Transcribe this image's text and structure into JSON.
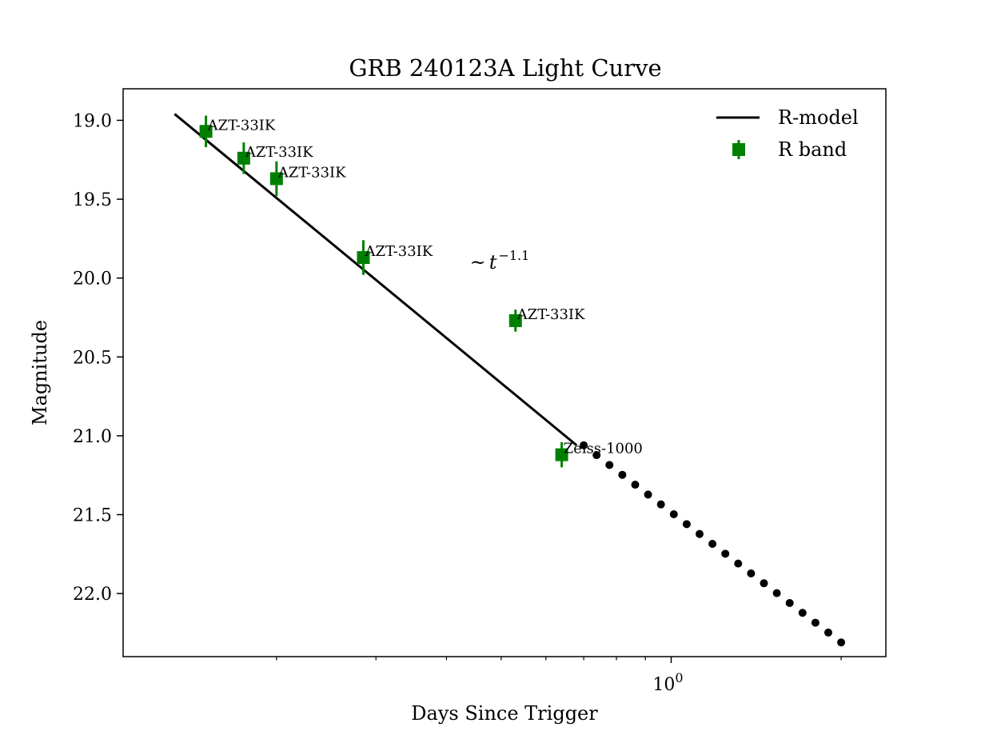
{
  "chart_data": {
    "type": "scatter",
    "title": "GRB 240123A Light Curve",
    "xlabel": "Days Since Trigger",
    "ylabel": "Magnitude",
    "x_scale": "log",
    "xlim": [
      0.107,
      2.4
    ],
    "ylim": [
      22.4,
      18.8
    ],
    "y_inverted": true,
    "x_tick_labels": [
      {
        "value": 1.0,
        "base": "10",
        "exp": "0"
      }
    ],
    "y_ticks": [
      {
        "value": 19.0,
        "label": "19.0"
      },
      {
        "value": 19.5,
        "label": "19.5"
      },
      {
        "value": 20.0,
        "label": "20.0"
      },
      {
        "value": 20.5,
        "label": "20.5"
      },
      {
        "value": 21.0,
        "label": "21.0"
      },
      {
        "value": 21.5,
        "label": "21.5"
      },
      {
        "value": 22.0,
        "label": "22.0"
      }
    ],
    "series": [
      {
        "name": "R band",
        "color": "#008000",
        "marker": "square",
        "points": [
          {
            "x": 0.15,
            "y": 19.07,
            "yerr": 0.1,
            "label": "AZT-33IK"
          },
          {
            "x": 0.175,
            "y": 19.24,
            "yerr": 0.1,
            "label": "AZT-33IK"
          },
          {
            "x": 0.2,
            "y": 19.37,
            "yerr": 0.11,
            "label": "AZT-33IK"
          },
          {
            "x": 0.285,
            "y": 19.87,
            "yerr": 0.11,
            "label": "AZT-33IK"
          },
          {
            "x": 0.53,
            "y": 20.27,
            "yerr": 0.07,
            "label": "AZT-33IK"
          },
          {
            "x": 0.64,
            "y": 21.12,
            "yerr": 0.08,
            "label": "Zeiss-1000"
          }
        ]
      },
      {
        "name": "R-model",
        "color": "#000000",
        "type": "line",
        "x": [
          0.132,
          0.68
        ],
        "y": [
          18.96,
          21.06
        ]
      },
      {
        "type": "dotted-extrapolation",
        "color": "#000000",
        "x_start": 0.7,
        "x_end": 2.0,
        "y_start": 21.06,
        "y_end": 22.31,
        "count": 21
      }
    ],
    "annotations": [
      {
        "text": "~",
        "math": "t",
        "exp": "−1.1",
        "x": 0.44,
        "y": 19.9
      }
    ],
    "legend": {
      "position": "top-right",
      "entries": [
        {
          "label": "R-model",
          "style": "line",
          "color": "#000000"
        },
        {
          "label": "R band",
          "style": "errorbar-square",
          "color": "#008000"
        }
      ]
    }
  }
}
